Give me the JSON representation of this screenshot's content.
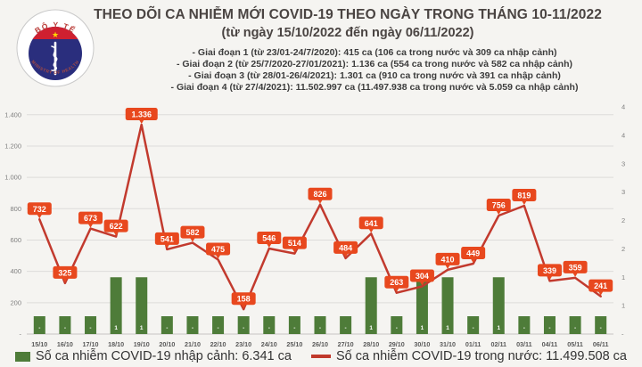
{
  "header": {
    "title": "THEO DÕI CA NHIỄM MỚI COVID-19 THEO NGÀY TRONG THÁNG 10-11/2022",
    "subtitle": "(từ ngày 15/10/2022 đến ngày 06/11/2022)",
    "stages": [
      "- Giai đoạn 1 (từ 23/01-24/7/2020): 415 ca (106 ca trong nước và 309 ca nhập cảnh)",
      "- Giai đoạn 2 (từ 25/7/2020-27/01/2021): 1.136 ca (554 ca trong nước và 582 ca nhập cảnh)",
      "- Giai đoạn 3 (từ 28/01-26/4/2021): 1.301 ca (910 ca trong nước và 391 ca nhập cảnh)",
      "- Giai đoạn 4 (từ 27/4/2021): 11.502.997 ca (11.497.938 ca trong nước và 5.059 ca nhập cảnh)"
    ],
    "logo": {
      "top_text": "BỘ Y TẾ",
      "bottom_text": "MINISTRY OF HEALTH"
    }
  },
  "chart_data": {
    "type": "combo",
    "categories": [
      "15/10",
      "16/10",
      "17/10",
      "18/10",
      "19/10",
      "20/10",
      "21/10",
      "22/10",
      "23/10",
      "24/10",
      "25/10",
      "26/10",
      "27/10",
      "28/10",
      "29/10",
      "30/10",
      "31/10",
      "01/11",
      "02/11",
      "03/11",
      "04/11",
      "05/11",
      "06/11"
    ],
    "series": [
      {
        "name": "Số ca nhiễm COVID-19 nhập cảnh",
        "type": "bar",
        "values": [
          0,
          0,
          0,
          1,
          1,
          0,
          0,
          0,
          0,
          0,
          0,
          0,
          0,
          1,
          0,
          1,
          1,
          0,
          1,
          0,
          0,
          0,
          0
        ],
        "labels": [
          "-",
          "-",
          "-",
          "1",
          "1",
          "-",
          "-",
          "-",
          "-",
          "-",
          "-",
          "-",
          "-",
          "1",
          "-",
          "1",
          "1",
          "-",
          "1",
          "-",
          "-",
          "-",
          "-"
        ],
        "color": "#4e7c39"
      },
      {
        "name": "Số ca nhiễm COVID-19 trong nước",
        "type": "line",
        "values": [
          732,
          325,
          673,
          622,
          1336,
          541,
          582,
          475,
          158,
          546,
          514,
          826,
          484,
          641,
          263,
          304,
          410,
          449,
          756,
          819,
          339,
          359,
          241
        ],
        "labels": [
          "732",
          "325",
          "673",
          "622",
          "1.336",
          "541",
          "582",
          "475",
          "158",
          "546",
          "514",
          "826",
          "484",
          "641",
          "263",
          "304",
          "410",
          "449",
          "756",
          "819",
          "339",
          "359",
          "241"
        ],
        "color": "#c23a2e",
        "label_bg": "#e8481e",
        "label_text_color": "#ffffff"
      }
    ],
    "left_axis": {
      "tick_labels_bottom_to_top": [
        "-",
        "200",
        "400",
        "600",
        "800",
        "1.000",
        "1.200",
        "1.400"
      ],
      "min": 0,
      "max": 1450,
      "tick_interval": 200
    },
    "right_axis": {
      "tick_labels_bottom_to_top": [
        "-",
        "1",
        "1",
        "2",
        "2",
        "3",
        "3",
        "4",
        "4"
      ],
      "min": 0,
      "max": 4,
      "tick_interval": 0.5
    },
    "grid": "horizontal",
    "legend_position": "bottom"
  },
  "legend": {
    "bar_label": "Số ca nhiễm COVID-19 nhập cảnh: 6.341 ca",
    "line_label": "Số ca nhiễm COVID-19 trong nước: 11.499.508 ca"
  },
  "colors": {
    "background": "#f5f4f1",
    "gridline": "#dddcda",
    "axis_text": "#7f7f7f",
    "date_text": "#595959",
    "bar_green": "#4e7c39",
    "line_red": "#c23a2e",
    "label_orange": "#e8481e"
  }
}
